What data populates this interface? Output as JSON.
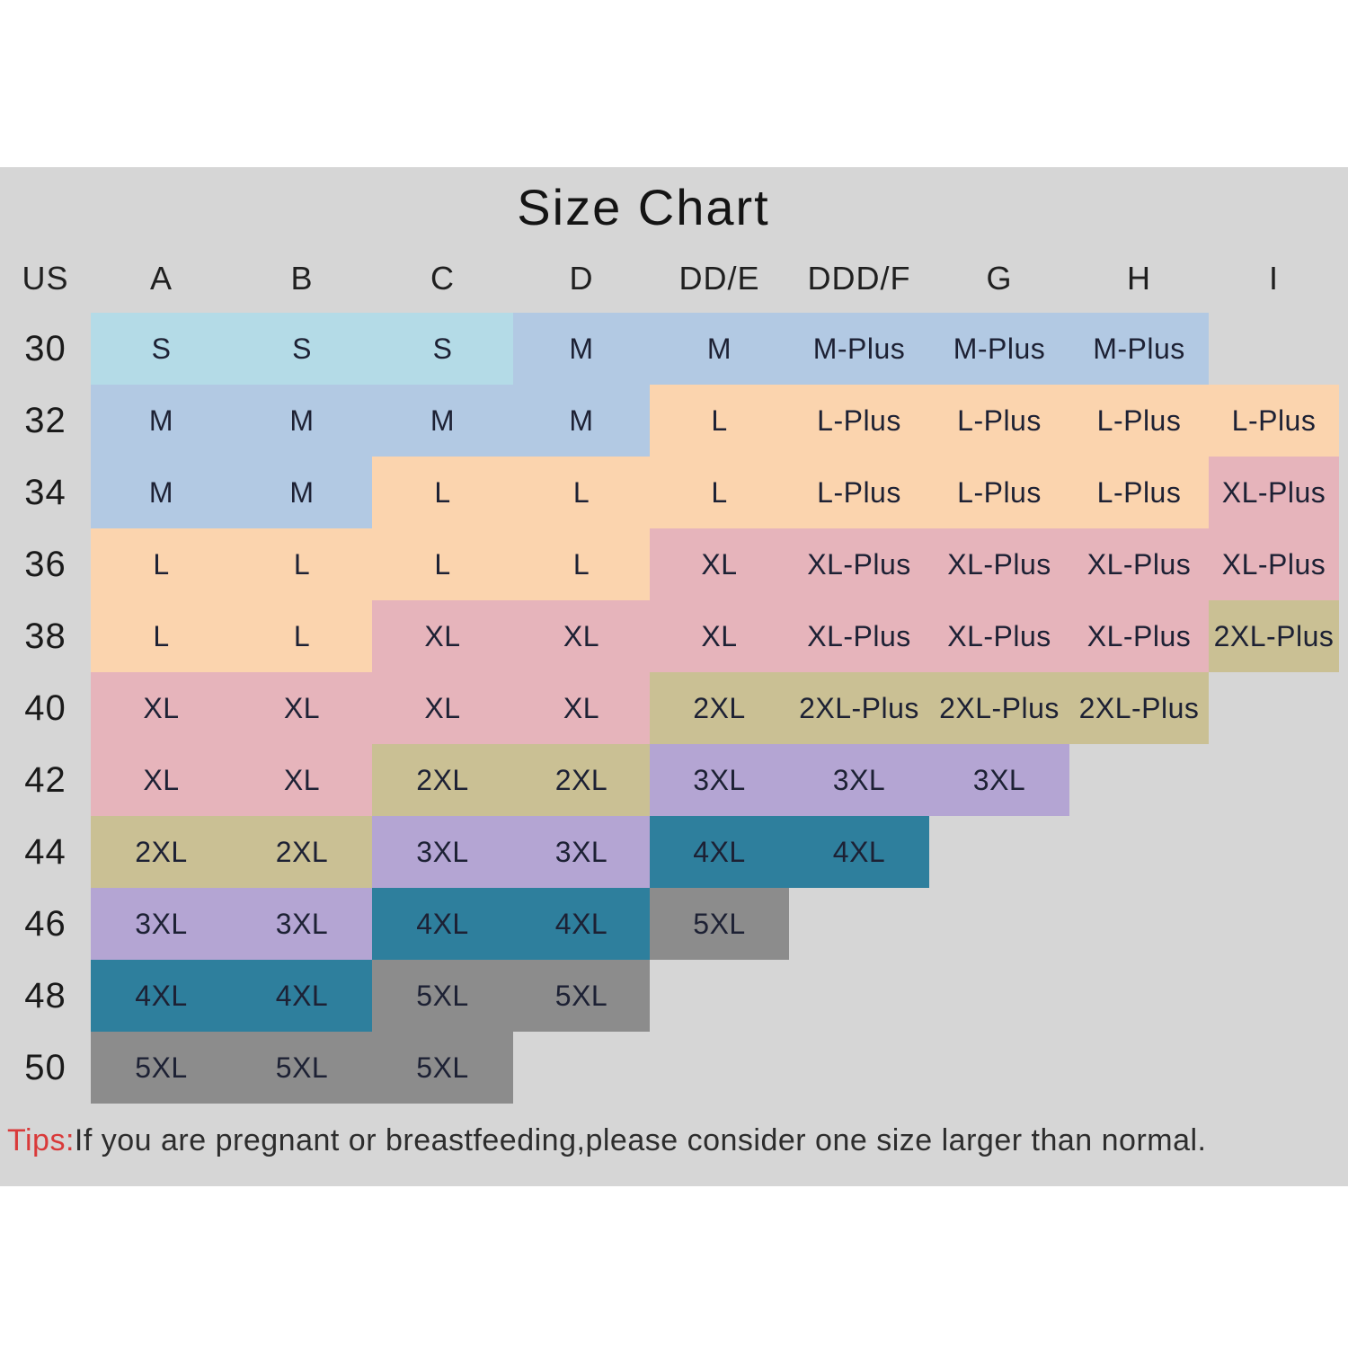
{
  "page": {
    "title": "Size Chart",
    "tips_label": "Tips:",
    "tips_text": "If you are pregnant or breastfeeding,please consider one size larger than normal."
  },
  "colors": {
    "background_band": "#d6d6d6",
    "tips_red": "#d93a3a",
    "cell_text": "#1d2134",
    "groups": {
      "S": "#b4dbe7",
      "M": "#b2c9e3",
      "L": "#fbd4ae",
      "XL": "#e6b4bb",
      "2XL": "#cac094",
      "3XL": "#b4a5d3",
      "4XL": "#2e7f9d",
      "5XL": "#8c8c8c"
    }
  },
  "chart_data": {
    "type": "table",
    "title": "Size Chart",
    "columns": [
      "US",
      "A",
      "B",
      "C",
      "D",
      "DD/E",
      "DDD/F",
      "G",
      "H",
      "I"
    ],
    "rows": [
      {
        "us": "30",
        "cells": [
          {
            "label": "S",
            "group": "S"
          },
          {
            "label": "S",
            "group": "S"
          },
          {
            "label": "S",
            "group": "S"
          },
          {
            "label": "M",
            "group": "M"
          },
          {
            "label": "M",
            "group": "M"
          },
          {
            "label": "M-Plus",
            "group": "M"
          },
          {
            "label": "M-Plus",
            "group": "M"
          },
          {
            "label": "M-Plus",
            "group": "M"
          },
          null
        ]
      },
      {
        "us": "32",
        "cells": [
          {
            "label": "M",
            "group": "M"
          },
          {
            "label": "M",
            "group": "M"
          },
          {
            "label": "M",
            "group": "M"
          },
          {
            "label": "M",
            "group": "M"
          },
          {
            "label": "L",
            "group": "L"
          },
          {
            "label": "L-Plus",
            "group": "L"
          },
          {
            "label": "L-Plus",
            "group": "L"
          },
          {
            "label": "L-Plus",
            "group": "L"
          },
          {
            "label": "L-Plus",
            "group": "L"
          }
        ]
      },
      {
        "us": "34",
        "cells": [
          {
            "label": "M",
            "group": "M"
          },
          {
            "label": "M",
            "group": "M"
          },
          {
            "label": "L",
            "group": "L"
          },
          {
            "label": "L",
            "group": "L"
          },
          {
            "label": "L",
            "group": "L"
          },
          {
            "label": "L-Plus",
            "group": "L"
          },
          {
            "label": "L-Plus",
            "group": "L"
          },
          {
            "label": "L-Plus",
            "group": "L"
          },
          {
            "label": "XL-Plus",
            "group": "XL"
          }
        ]
      },
      {
        "us": "36",
        "cells": [
          {
            "label": "L",
            "group": "L"
          },
          {
            "label": "L",
            "group": "L"
          },
          {
            "label": "L",
            "group": "L"
          },
          {
            "label": "L",
            "group": "L"
          },
          {
            "label": "XL",
            "group": "XL"
          },
          {
            "label": "XL-Plus",
            "group": "XL"
          },
          {
            "label": "XL-Plus",
            "group": "XL"
          },
          {
            "label": "XL-Plus",
            "group": "XL"
          },
          {
            "label": "XL-Plus",
            "group": "XL"
          }
        ]
      },
      {
        "us": "38",
        "cells": [
          {
            "label": "L",
            "group": "L"
          },
          {
            "label": "L",
            "group": "L"
          },
          {
            "label": "XL",
            "group": "XL"
          },
          {
            "label": "XL",
            "group": "XL"
          },
          {
            "label": "XL",
            "group": "XL"
          },
          {
            "label": "XL-Plus",
            "group": "XL"
          },
          {
            "label": "XL-Plus",
            "group": "XL"
          },
          {
            "label": "XL-Plus",
            "group": "XL"
          },
          {
            "label": "2XL-Plus",
            "group": "2XL"
          }
        ]
      },
      {
        "us": "40",
        "cells": [
          {
            "label": "XL",
            "group": "XL"
          },
          {
            "label": "XL",
            "group": "XL"
          },
          {
            "label": "XL",
            "group": "XL"
          },
          {
            "label": "XL",
            "group": "XL"
          },
          {
            "label": "2XL",
            "group": "2XL"
          },
          {
            "label": "2XL-Plus",
            "group": "2XL"
          },
          {
            "label": "2XL-Plus",
            "group": "2XL"
          },
          {
            "label": "2XL-Plus",
            "group": "2XL"
          },
          null
        ]
      },
      {
        "us": "42",
        "cells": [
          {
            "label": "XL",
            "group": "XL"
          },
          {
            "label": "XL",
            "group": "XL"
          },
          {
            "label": "2XL",
            "group": "2XL"
          },
          {
            "label": "2XL",
            "group": "2XL"
          },
          {
            "label": "3XL",
            "group": "3XL"
          },
          {
            "label": "3XL",
            "group": "3XL"
          },
          {
            "label": "3XL",
            "group": "3XL"
          },
          null,
          null
        ]
      },
      {
        "us": "44",
        "cells": [
          {
            "label": "2XL",
            "group": "2XL"
          },
          {
            "label": "2XL",
            "group": "2XL"
          },
          {
            "label": "3XL",
            "group": "3XL"
          },
          {
            "label": "3XL",
            "group": "3XL"
          },
          {
            "label": "4XL",
            "group": "4XL"
          },
          {
            "label": "4XL",
            "group": "4XL"
          },
          null,
          null,
          null
        ]
      },
      {
        "us": "46",
        "cells": [
          {
            "label": "3XL",
            "group": "3XL"
          },
          {
            "label": "3XL",
            "group": "3XL"
          },
          {
            "label": "4XL",
            "group": "4XL"
          },
          {
            "label": "4XL",
            "group": "4XL"
          },
          {
            "label": "5XL",
            "group": "5XL"
          },
          null,
          null,
          null,
          null
        ]
      },
      {
        "us": "48",
        "cells": [
          {
            "label": "4XL",
            "group": "4XL"
          },
          {
            "label": "4XL",
            "group": "4XL"
          },
          {
            "label": "5XL",
            "group": "5XL"
          },
          {
            "label": "5XL",
            "group": "5XL"
          },
          null,
          null,
          null,
          null,
          null
        ]
      },
      {
        "us": "50",
        "cells": [
          {
            "label": "5XL",
            "group": "5XL"
          },
          {
            "label": "5XL",
            "group": "5XL"
          },
          {
            "label": "5XL",
            "group": "5XL"
          },
          null,
          null,
          null,
          null,
          null,
          null
        ]
      }
    ]
  }
}
